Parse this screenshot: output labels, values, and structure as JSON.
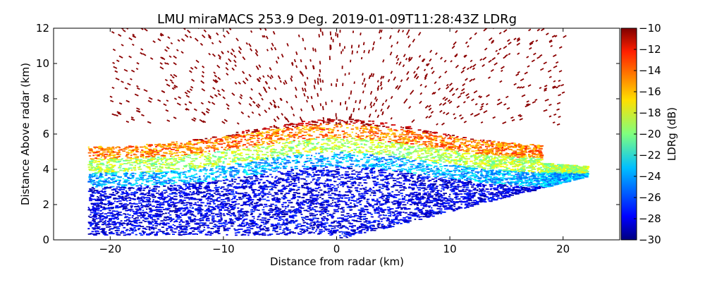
{
  "chart_data": {
    "type": "heatmap",
    "title": "LMU miraMACS 253.9 Deg. 2019-01-09T11:28:43Z  LDRg",
    "xlabel": "Distance from radar (km)",
    "ylabel": "Distance Above radar  (km)",
    "xlim": [
      -25,
      25
    ],
    "ylim": [
      0,
      12
    ],
    "x_ticks": [
      -20,
      -10,
      0,
      10,
      20
    ],
    "x_tick_labels": [
      "−20",
      "−10",
      "0",
      "10",
      "20"
    ],
    "y_ticks": [
      0,
      2,
      4,
      6,
      8,
      10,
      12
    ],
    "y_tick_labels": [
      "0",
      "2",
      "4",
      "6",
      "8",
      "10",
      "12"
    ],
    "colorbar": {
      "label": "LDRg (dB)",
      "range": [
        -30,
        -10
      ],
      "ticks": [
        -30,
        -28,
        -26,
        -24,
        -22,
        -20,
        -18,
        -16,
        -14,
        -12,
        -10
      ],
      "tick_labels": [
        "−30",
        "−28",
        "−26",
        "−24",
        "−22",
        "−20",
        "−18",
        "−16",
        "−14",
        "−12",
        "−10"
      ],
      "colormap": "jet"
    },
    "scan": {
      "left_edge_x": -22,
      "right_edge_x": 22,
      "right_edge_top_y": 4.2,
      "low_elevation_edge": [
        [
          0,
          0
        ],
        [
          22,
          3.6
        ]
      ]
    },
    "layers": [
      {
        "y_range": [
          0,
          3.3
        ],
        "ldr": -28
      },
      {
        "y_range": [
          3.0,
          4.0
        ],
        "ldr": -23
      },
      {
        "y_range": [
          4.0,
          5.0
        ],
        "ldr": -18
      },
      {
        "y_range": [
          4.8,
          5.8
        ],
        "ldr": -14
      },
      {
        "y_range": [
          5.5,
          7.0
        ],
        "ldr": -11
      },
      {
        "y_range": [
          7.0,
          12.0
        ],
        "ldr": -10
      }
    ]
  }
}
